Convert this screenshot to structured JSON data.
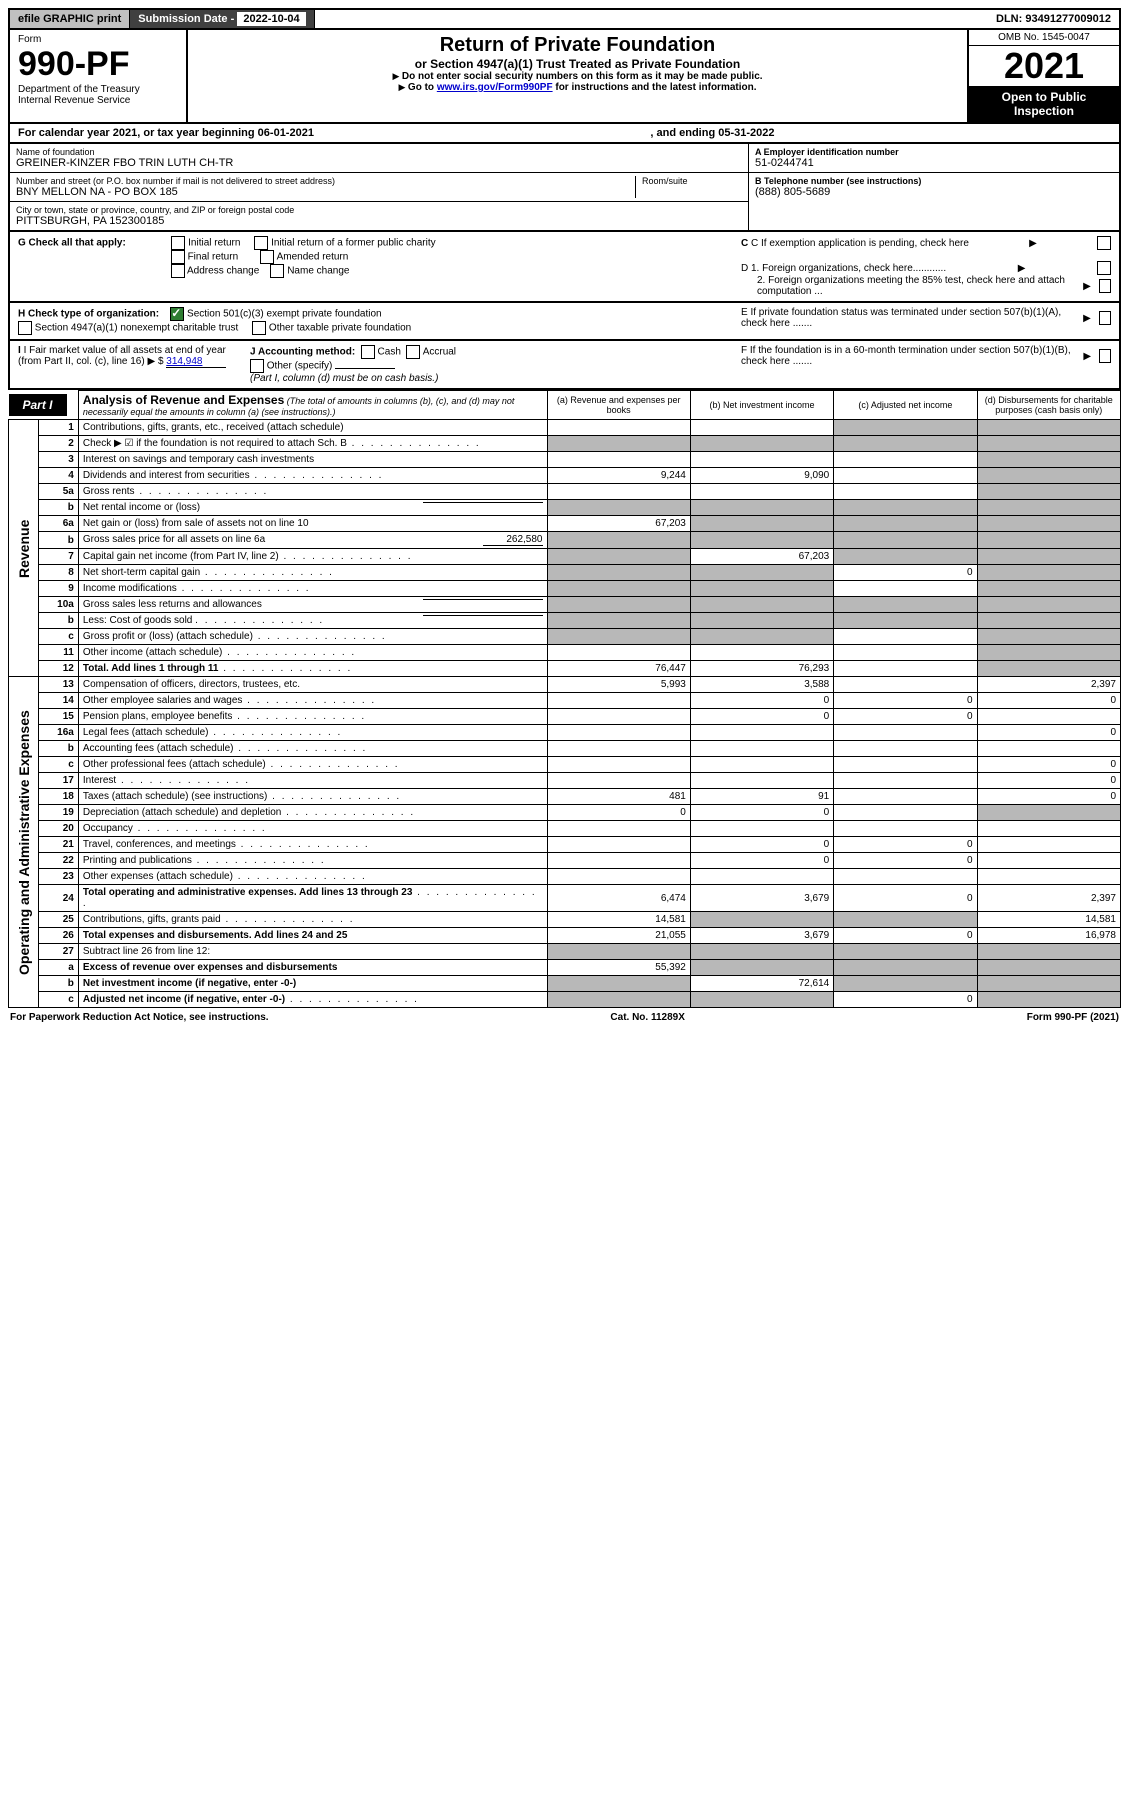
{
  "top": {
    "efile": "efile GRAPHIC print",
    "subdate_label": "Submission Date - ",
    "subdate_val": "2022-10-04",
    "dln": "DLN: 93491277009012"
  },
  "header": {
    "form_label": "Form",
    "form_num": "990-PF",
    "dept": "Department of the Treasury",
    "irs": "Internal Revenue Service",
    "title": "Return of Private Foundation",
    "subtitle": "or Section 4947(a)(1) Trust Treated as Private Foundation",
    "note1": "Do not enter social security numbers on this form as it may be made public.",
    "note2_pre": "Go to ",
    "note2_link": "www.irs.gov/Form990PF",
    "note2_post": " for instructions and the latest information.",
    "omb": "OMB No. 1545-0047",
    "year": "2021",
    "open": "Open to Public Inspection"
  },
  "cal_year": {
    "pre": "For calendar year 2021, or tax year beginning ",
    "begin": "06-01-2021",
    "mid": ", and ending ",
    "end": "05-31-2022"
  },
  "entity": {
    "name_label": "Name of foundation",
    "name": "GREINER-KINZER FBO TRIN LUTH CH-TR",
    "addr_label": "Number and street (or P.O. box number if mail is not delivered to street address)",
    "room_label": "Room/suite",
    "addr": "BNY MELLON NA - PO BOX 185",
    "city_label": "City or town, state or province, country, and ZIP or foreign postal code",
    "city": "PITTSBURGH, PA  152300185",
    "ein_label": "A Employer identification number",
    "ein": "51-0244741",
    "phone_label": "B Telephone number (see instructions)",
    "phone": "(888) 805-5689",
    "c_label": "C If exemption application is pending, check here",
    "d1": "D 1. Foreign organizations, check here............",
    "d2": "2. Foreign organizations meeting the 85% test, check here and attach computation ...",
    "e_label": "E  If private foundation status was terminated under section 507(b)(1)(A), check here .......",
    "f_label": "F  If the foundation is in a 60-month termination under section 507(b)(1)(B), check here .......",
    "g_label": "G Check all that apply:",
    "g_opts": [
      "Initial return",
      "Initial return of a former public charity",
      "Final return",
      "Amended return",
      "Address change",
      "Name change"
    ],
    "h_label": "H Check type of organization:",
    "h1": "Section 501(c)(3) exempt private foundation",
    "h2": "Section 4947(a)(1) nonexempt charitable trust",
    "h3": "Other taxable private foundation",
    "i_label": "I Fair market value of all assets at end of year (from Part II, col. (c), line 16)",
    "i_val": "314,948",
    "j_label": "J Accounting method:",
    "j_cash": "Cash",
    "j_accrual": "Accrual",
    "j_other": "Other (specify)",
    "j_note": "(Part I, column (d) must be on cash basis.)"
  },
  "part1": {
    "tag": "Part I",
    "title": "Analysis of Revenue and Expenses",
    "note": "(The total of amounts in columns (b), (c), and (d) may not necessarily equal the amounts in column (a) (see instructions).)",
    "cols": {
      "a": "(a)  Revenue and expenses per books",
      "b": "(b)  Net investment income",
      "c": "(c)  Adjusted net income",
      "d": "(d)  Disbursements for charitable purposes (cash basis only)"
    },
    "side_rev": "Revenue",
    "side_exp": "Operating and Administrative Expenses"
  },
  "rows": [
    {
      "n": "1",
      "desc": "Contributions, gifts, grants, etc., received (attach schedule)",
      "a": "",
      "b": "",
      "c": "shaded",
      "d": "shaded"
    },
    {
      "n": "2",
      "desc": "Check ▶ ☑ if the foundation is not required to attach Sch. B",
      "dots": true,
      "a": "shaded",
      "b": "shaded",
      "c": "shaded",
      "d": "shaded"
    },
    {
      "n": "3",
      "desc": "Interest on savings and temporary cash investments",
      "a": "",
      "b": "",
      "c": "",
      "d": "shaded"
    },
    {
      "n": "4",
      "desc": "Dividends and interest from securities",
      "dots": true,
      "a": "9,244",
      "b": "9,090",
      "c": "",
      "d": "shaded"
    },
    {
      "n": "5a",
      "desc": "Gross rents",
      "dots": true,
      "a": "",
      "b": "",
      "c": "",
      "d": "shaded"
    },
    {
      "n": "b",
      "desc": "Net rental income or (loss)",
      "inline": true,
      "a": "shaded",
      "b": "shaded",
      "c": "shaded",
      "d": "shaded"
    },
    {
      "n": "6a",
      "desc": "Net gain or (loss) from sale of assets not on line 10",
      "a": "67,203",
      "b": "shaded",
      "c": "shaded",
      "d": "shaded"
    },
    {
      "n": "b",
      "desc": "Gross sales price for all assets on line 6a",
      "inline_val": "262,580",
      "a": "shaded",
      "b": "shaded",
      "c": "shaded",
      "d": "shaded"
    },
    {
      "n": "7",
      "desc": "Capital gain net income (from Part IV, line 2)",
      "dots": true,
      "a": "shaded",
      "b": "67,203",
      "c": "shaded",
      "d": "shaded"
    },
    {
      "n": "8",
      "desc": "Net short-term capital gain",
      "dots": true,
      "a": "shaded",
      "b": "shaded",
      "c": "0",
      "d": "shaded"
    },
    {
      "n": "9",
      "desc": "Income modifications",
      "dots": true,
      "a": "shaded",
      "b": "shaded",
      "c": "",
      "d": "shaded"
    },
    {
      "n": "10a",
      "desc": "Gross sales less returns and allowances",
      "inline": true,
      "a": "shaded",
      "b": "shaded",
      "c": "shaded",
      "d": "shaded"
    },
    {
      "n": "b",
      "desc": "Less: Cost of goods sold",
      "dots": true,
      "inline": true,
      "a": "shaded",
      "b": "shaded",
      "c": "shaded",
      "d": "shaded"
    },
    {
      "n": "c",
      "desc": "Gross profit or (loss) (attach schedule)",
      "dots": true,
      "a": "shaded",
      "b": "shaded",
      "c": "",
      "d": "shaded"
    },
    {
      "n": "11",
      "desc": "Other income (attach schedule)",
      "dots": true,
      "a": "",
      "b": "",
      "c": "",
      "d": "shaded"
    },
    {
      "n": "12",
      "desc": "Total. Add lines 1 through 11",
      "dots": true,
      "bold": true,
      "a": "76,447",
      "b": "76,293",
      "c": "",
      "d": "shaded"
    },
    {
      "n": "13",
      "desc": "Compensation of officers, directors, trustees, etc.",
      "a": "5,993",
      "b": "3,588",
      "c": "",
      "d": "2,397"
    },
    {
      "n": "14",
      "desc": "Other employee salaries and wages",
      "dots": true,
      "a": "",
      "b": "0",
      "c": "0",
      "d": "0"
    },
    {
      "n": "15",
      "desc": "Pension plans, employee benefits",
      "dots": true,
      "a": "",
      "b": "0",
      "c": "0",
      "d": ""
    },
    {
      "n": "16a",
      "desc": "Legal fees (attach schedule)",
      "dots": true,
      "a": "",
      "b": "",
      "c": "",
      "d": "0"
    },
    {
      "n": "b",
      "desc": "Accounting fees (attach schedule)",
      "dots": true,
      "a": "",
      "b": "",
      "c": "",
      "d": ""
    },
    {
      "n": "c",
      "desc": "Other professional fees (attach schedule)",
      "dots": true,
      "a": "",
      "b": "",
      "c": "",
      "d": "0"
    },
    {
      "n": "17",
      "desc": "Interest",
      "dots": true,
      "a": "",
      "b": "",
      "c": "",
      "d": "0"
    },
    {
      "n": "18",
      "desc": "Taxes (attach schedule) (see instructions)",
      "dots": true,
      "a": "481",
      "b": "91",
      "c": "",
      "d": "0"
    },
    {
      "n": "19",
      "desc": "Depreciation (attach schedule) and depletion",
      "dots": true,
      "a": "0",
      "b": "0",
      "c": "",
      "d": "shaded"
    },
    {
      "n": "20",
      "desc": "Occupancy",
      "dots": true,
      "a": "",
      "b": "",
      "c": "",
      "d": ""
    },
    {
      "n": "21",
      "desc": "Travel, conferences, and meetings",
      "dots": true,
      "a": "",
      "b": "0",
      "c": "0",
      "d": ""
    },
    {
      "n": "22",
      "desc": "Printing and publications",
      "dots": true,
      "a": "",
      "b": "0",
      "c": "0",
      "d": ""
    },
    {
      "n": "23",
      "desc": "Other expenses (attach schedule)",
      "dots": true,
      "a": "",
      "b": "",
      "c": "",
      "d": ""
    },
    {
      "n": "24",
      "desc": "Total operating and administrative expenses. Add lines 13 through 23",
      "dots": true,
      "bold": true,
      "a": "6,474",
      "b": "3,679",
      "c": "0",
      "d": "2,397"
    },
    {
      "n": "25",
      "desc": "Contributions, gifts, grants paid",
      "dots": true,
      "a": "14,581",
      "b": "shaded",
      "c": "shaded",
      "d": "14,581"
    },
    {
      "n": "26",
      "desc": "Total expenses and disbursements. Add lines 24 and 25",
      "bold": true,
      "a": "21,055",
      "b": "3,679",
      "c": "0",
      "d": "16,978"
    },
    {
      "n": "27",
      "desc": "Subtract line 26 from line 12:",
      "a": "shaded",
      "b": "shaded",
      "c": "shaded",
      "d": "shaded"
    },
    {
      "n": "a",
      "desc": "Excess of revenue over expenses and disbursements",
      "bold": true,
      "a": "55,392",
      "b": "shaded",
      "c": "shaded",
      "d": "shaded"
    },
    {
      "n": "b",
      "desc": "Net investment income (if negative, enter -0-)",
      "bold": true,
      "a": "shaded",
      "b": "72,614",
      "c": "shaded",
      "d": "shaded"
    },
    {
      "n": "c",
      "desc": "Adjusted net income (if negative, enter -0-)",
      "dots": true,
      "bold": true,
      "a": "shaded",
      "b": "shaded",
      "c": "0",
      "d": "shaded"
    }
  ],
  "footer": {
    "left": "For Paperwork Reduction Act Notice, see instructions.",
    "mid": "Cat. No. 11289X",
    "right": "Form 990-PF (2021)"
  },
  "colors": {
    "shaded": "#b8b8b8",
    "black": "#000000",
    "link": "#0000cc",
    "check_green": "#2e7d32"
  }
}
